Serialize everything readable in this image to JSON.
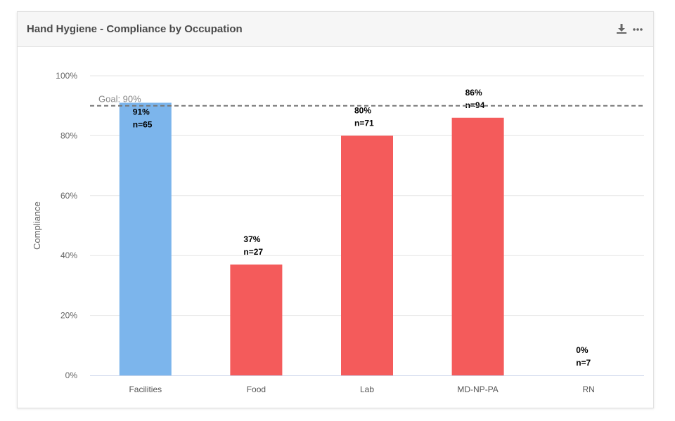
{
  "card": {
    "title": "Hand Hygiene - Compliance by Occupation"
  },
  "icons": {
    "download": "download-icon",
    "more": "more-dots-icon"
  },
  "colors": {
    "met_goal": "#7cb5ec",
    "below_goal": "#f45b5b",
    "goal_line": "#777777",
    "header_bg": "#f6f6f6"
  },
  "chart_data": {
    "type": "bar",
    "title": "",
    "xlabel": "",
    "ylabel": "Compliance",
    "ylim": [
      0,
      100
    ],
    "yticks": [
      "0%",
      "20%",
      "40%",
      "60%",
      "80%",
      "100%"
    ],
    "categories": [
      "Facilities",
      "Food",
      "Lab",
      "MD-NP-PA",
      "RN"
    ],
    "values": [
      91,
      37,
      80,
      86,
      0
    ],
    "counts": [
      "n=65",
      "n=27",
      "n=71",
      "n=94",
      "n=7"
    ],
    "value_labels": [
      "91%",
      "37%",
      "80%",
      "86%",
      "0%"
    ],
    "goal": {
      "value": 90,
      "label": "Goal: 90%"
    },
    "grid": true,
    "legend": "none"
  }
}
